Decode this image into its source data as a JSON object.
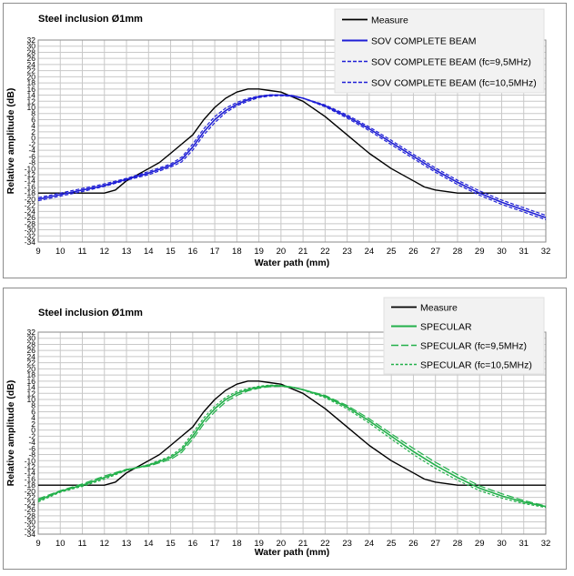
{
  "chart_data": [
    {
      "type": "line",
      "title": "Steel inclusion Ø1mm",
      "xlabel": "Water path (mm)",
      "ylabel": "Relative amplitude (dB)",
      "xlim": [
        9,
        32
      ],
      "ylim": [
        -34,
        32
      ],
      "xticks": [
        "9",
        "10",
        "11",
        "12",
        "13",
        "14",
        "15",
        "16",
        "17",
        "18",
        "19",
        "20",
        "21",
        "22",
        "23",
        "24",
        "25",
        "26",
        "27",
        "28",
        "29",
        "30",
        "31",
        "32"
      ],
      "yticks": [
        "32",
        "30",
        "28",
        "26",
        "24",
        "22",
        "20",
        "18",
        "16",
        "14",
        "12",
        "10",
        "8",
        "6",
        "4",
        "2",
        "0",
        "-2",
        "-4",
        "-6",
        "-8",
        "-10",
        "-12",
        "-14",
        "-16",
        "-18",
        "-20",
        "-22",
        "-24",
        "-26",
        "-28",
        "-30",
        "-32",
        "-34"
      ],
      "grid": true,
      "legend": "top-right",
      "series": [
        {
          "name": "Measure",
          "color": "#000000",
          "dash": "",
          "width": 1.4,
          "x": [
            9,
            10,
            11,
            12,
            12.5,
            13,
            13.5,
            14,
            14.5,
            15,
            15.5,
            16,
            16.5,
            17,
            17.5,
            18,
            18.5,
            19,
            19.5,
            20,
            21,
            22,
            23,
            24,
            25,
            26,
            26.5,
            27,
            28,
            29,
            30,
            31,
            32
          ],
          "y": [
            -18,
            -18,
            -18,
            -18,
            -17,
            -14,
            -12,
            -10,
            -8,
            -5,
            -2,
            1,
            6,
            10,
            13,
            15,
            16,
            16,
            15.5,
            15,
            12,
            7,
            1,
            -5,
            -10,
            -14,
            -16,
            -17,
            -18,
            -18,
            -18,
            -18,
            -18
          ]
        },
        {
          "name": "SOV COMPLETE BEAM",
          "color": "#1f1fd6",
          "dash": "",
          "width": 1.6,
          "x": [
            9,
            10,
            11,
            12,
            13,
            14,
            15,
            15.5,
            16,
            16.5,
            17,
            17.5,
            18,
            18.5,
            19,
            19.5,
            20,
            20.5,
            21,
            22,
            23,
            24,
            25,
            26,
            27,
            28,
            29,
            30,
            31,
            32
          ],
          "y": [
            -20,
            -18.5,
            -17,
            -15.5,
            -13.5,
            -11.5,
            -9,
            -7,
            -3,
            2,
            6,
            9,
            11,
            12.5,
            13.5,
            14,
            14,
            13.8,
            13,
            10.5,
            7,
            3,
            -1.5,
            -6,
            -10.5,
            -14.5,
            -18,
            -21,
            -23.5,
            -26
          ]
        },
        {
          "name": "SOV COMPLETE BEAM (fc=9,5MHz)",
          "color": "#1f1fd6",
          "dash": "4,2",
          "width": 1.2,
          "x": [
            9,
            10,
            11,
            12,
            13,
            14,
            15,
            15.5,
            16,
            16.5,
            17,
            17.5,
            18,
            18.5,
            19,
            19.5,
            20,
            20.5,
            21,
            22,
            23,
            24,
            25,
            26,
            27,
            28,
            29,
            30,
            31,
            32
          ],
          "y": [
            -20.5,
            -19,
            -17.5,
            -15.8,
            -13.8,
            -12,
            -9.5,
            -7.8,
            -4,
            1,
            5,
            8.3,
            10.5,
            12,
            13.2,
            13.7,
            13.8,
            13.6,
            13,
            10.8,
            7.5,
            3.6,
            -0.8,
            -5.3,
            -9.8,
            -13.8,
            -17.3,
            -20.3,
            -22.8,
            -25.3
          ]
        },
        {
          "name": "SOV COMPLETE BEAM  (fc=10,5MHz)",
          "color": "#1f1fd6",
          "dash": "4,2",
          "width": 1.2,
          "x": [
            9,
            10,
            11,
            12,
            13,
            14,
            15,
            15.5,
            16,
            16.5,
            17,
            17.5,
            18,
            18.5,
            19,
            19.5,
            20,
            20.5,
            21,
            22,
            23,
            24,
            25,
            26,
            27,
            28,
            29,
            30,
            31,
            32
          ],
          "y": [
            -19.5,
            -18,
            -16.5,
            -15,
            -13.2,
            -11,
            -8.5,
            -6.3,
            -2,
            3,
            7,
            9.8,
            11.6,
            12.9,
            13.7,
            14.1,
            14.1,
            13.9,
            13,
            10.2,
            6.5,
            2.4,
            -2.2,
            -6.7,
            -11.2,
            -15.2,
            -18.7,
            -21.7,
            -24.2,
            -26.7
          ]
        }
      ],
      "legend_box": {
        "show": true
      }
    },
    {
      "type": "line",
      "title": "Steel inclusion Ø1mm",
      "xlabel": "Water path (mm)",
      "ylabel": "Relative amplitude (dB)",
      "xlim": [
        9,
        32
      ],
      "ylim": [
        -34,
        32
      ],
      "xticks": [
        "9",
        "10",
        "11",
        "12",
        "13",
        "14",
        "15",
        "16",
        "17",
        "18",
        "19",
        "20",
        "21",
        "22",
        "23",
        "24",
        "25",
        "26",
        "27",
        "28",
        "29",
        "30",
        "31",
        "32"
      ],
      "yticks": [
        "32",
        "30",
        "28",
        "26",
        "24",
        "22",
        "20",
        "18",
        "16",
        "14",
        "12",
        "10",
        "8",
        "6",
        "4",
        "2",
        "0",
        "-2",
        "-4",
        "-6",
        "-8",
        "-10",
        "-12",
        "-14",
        "-16",
        "-18",
        "-20",
        "-22",
        "-24",
        "-26",
        "-28",
        "-30",
        "-32",
        "-34"
      ],
      "grid": true,
      "legend": "top-right",
      "series": [
        {
          "name": "Measure",
          "color": "#000000",
          "dash": "",
          "width": 1.4,
          "x": [
            9,
            10,
            11,
            12,
            12.5,
            13,
            13.5,
            14,
            14.5,
            15,
            15.5,
            16,
            16.5,
            17,
            17.5,
            18,
            18.5,
            19,
            19.5,
            20,
            21,
            22,
            23,
            24,
            25,
            26,
            26.5,
            27,
            28,
            29,
            30,
            31,
            32
          ],
          "y": [
            -18,
            -18,
            -18,
            -18,
            -17,
            -14,
            -12,
            -10,
            -8,
            -5,
            -2,
            1,
            6,
            10,
            13,
            15,
            16,
            16,
            15.5,
            15,
            12,
            7,
            1,
            -5,
            -10,
            -14,
            -16,
            -17,
            -18,
            -18,
            -18,
            -18,
            -18
          ]
        },
        {
          "name": "SPECULAR",
          "color": "#22b04a",
          "dash": "",
          "width": 1.6,
          "x": [
            9,
            10,
            11,
            12,
            13,
            14,
            15,
            15.5,
            16,
            16.5,
            17,
            17.5,
            18,
            18.5,
            19,
            19.5,
            20,
            20.5,
            21,
            22,
            23,
            24,
            25,
            26,
            27,
            28,
            29,
            30,
            31,
            32
          ],
          "y": [
            -23,
            -20,
            -18,
            -15.5,
            -13,
            -11.5,
            -9,
            -6.5,
            -2,
            3,
            7,
            10,
            12,
            13.2,
            14,
            14.5,
            14.5,
            14,
            13.2,
            11,
            7.5,
            3,
            -2,
            -7,
            -11.5,
            -15.5,
            -19,
            -21.5,
            -23.5,
            -25
          ]
        },
        {
          "name": "SPECULAR  (fc=9,5MHz)",
          "color": "#22b04a",
          "dash": "8,3",
          "width": 1.2,
          "x": [
            9,
            10,
            11,
            12,
            13,
            14,
            15,
            15.5,
            16,
            16.5,
            17,
            17.5,
            18,
            18.5,
            19,
            19.5,
            20,
            20.5,
            21,
            22,
            23,
            24,
            25,
            26,
            27,
            28,
            29,
            30,
            31,
            32
          ],
          "y": [
            -22.5,
            -19.8,
            -17.6,
            -15,
            -12.8,
            -11.8,
            -9.6,
            -7.3,
            -3,
            2,
            6,
            9.2,
            11.3,
            12.8,
            13.7,
            14.2,
            14.3,
            13.9,
            13.2,
            11.3,
            8,
            3.7,
            -1.2,
            -6,
            -10.5,
            -14.6,
            -18.2,
            -20.8,
            -23,
            -24.8
          ]
        },
        {
          "name": "SPECULAR  (fc=10,5MHz)",
          "color": "#22b04a",
          "dash": "3,2",
          "width": 1.2,
          "x": [
            9,
            10,
            11,
            12,
            13,
            14,
            15,
            15.5,
            16,
            16.5,
            17,
            17.5,
            18,
            18.5,
            19,
            19.5,
            20,
            20.5,
            21,
            22,
            23,
            24,
            25,
            26,
            27,
            28,
            29,
            30,
            31,
            32
          ],
          "y": [
            -23.5,
            -20.3,
            -18.4,
            -16,
            -13.2,
            -11.3,
            -8.5,
            -5.8,
            -1,
            4,
            7.8,
            10.7,
            12.6,
            13.6,
            14.3,
            14.7,
            14.6,
            14.1,
            13.1,
            10.6,
            6.9,
            2.3,
            -2.9,
            -8,
            -12.5,
            -16.4,
            -19.8,
            -22.2,
            -24,
            -25.3
          ]
        }
      ],
      "legend_box": {
        "show": true
      }
    }
  ]
}
